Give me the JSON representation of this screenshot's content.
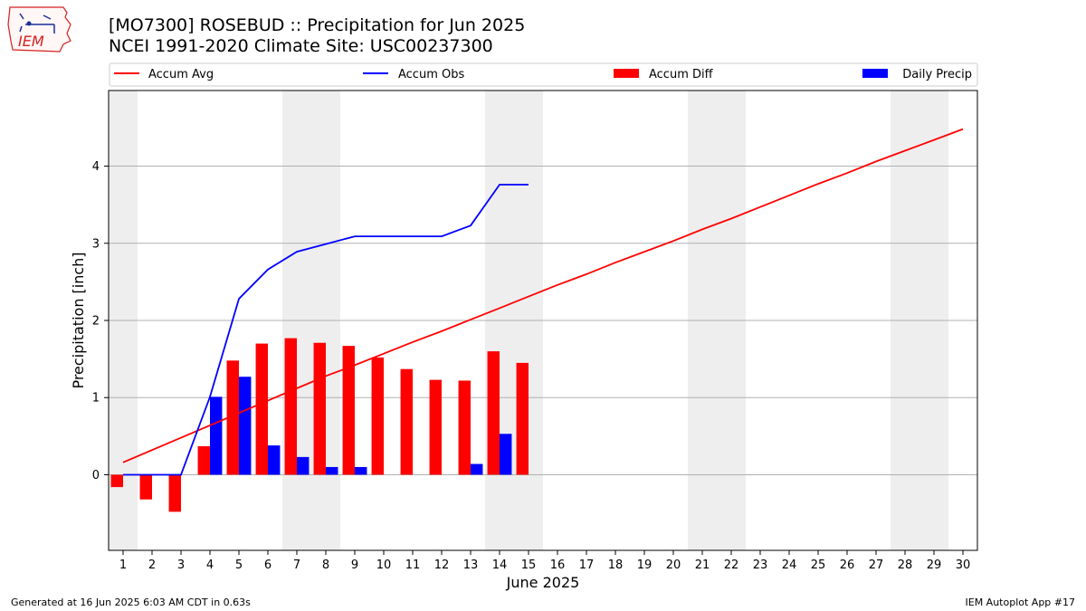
{
  "header": {
    "title": "[MO7300] ROSEBUD :: Precipitation for Jun 2025",
    "subtitle": "NCEI 1991-2020 Climate Site: USC00237300"
  },
  "logo": {
    "text": "IEM",
    "icon": "iem-iowa-logo-icon"
  },
  "footer": {
    "generated": "Generated at 16 Jun 2025 6:03 AM CDT in 0.63s",
    "app": "IEM Autoplot App #17"
  },
  "colors": {
    "accum_avg": "#ff0000",
    "accum_obs": "#0000ff",
    "accum_diff": "#ff0000",
    "daily_precip": "#0000ff",
    "weekend_band": "#eeeeee",
    "grid": "#b0b0b0"
  },
  "chart_data": {
    "type": "bar",
    "title": "",
    "xlabel": "June 2025",
    "ylabel": "Precipitation [inch]",
    "xlim": [
      0.5,
      30.5
    ],
    "ylim": [
      -0.98,
      4.98
    ],
    "x_ticks": [
      "1",
      "2",
      "3",
      "4",
      "5",
      "6",
      "7",
      "8",
      "9",
      "10",
      "11",
      "12",
      "13",
      "14",
      "15",
      "16",
      "17",
      "18",
      "19",
      "20",
      "21",
      "22",
      "23",
      "24",
      "25",
      "26",
      "27",
      "28",
      "29",
      "30"
    ],
    "y_ticks": [
      0,
      1,
      2,
      3,
      4
    ],
    "grid": "horizontal",
    "legend_placement": "top",
    "legend": [
      "Accum Avg",
      "Accum Obs",
      "Accum Diff",
      "Daily Precip"
    ],
    "weekend_days": [
      1,
      7,
      8,
      14,
      15,
      21,
      22,
      28,
      29
    ],
    "days": [
      1,
      2,
      3,
      4,
      5,
      6,
      7,
      8,
      9,
      10,
      11,
      12,
      13,
      14,
      15,
      16,
      17,
      18,
      19,
      20,
      21,
      22,
      23,
      24,
      25,
      26,
      27,
      28,
      29,
      30
    ],
    "series": [
      {
        "name": "Accum Avg",
        "kind": "line",
        "values": [
          0.16,
          0.32,
          0.48,
          0.64,
          0.8,
          0.96,
          1.12,
          1.28,
          1.42,
          1.57,
          1.72,
          1.86,
          2.01,
          2.16,
          2.31,
          2.46,
          2.6,
          2.75,
          2.89,
          3.03,
          3.18,
          3.32,
          3.47,
          3.62,
          3.77,
          3.91,
          4.06,
          4.2,
          4.34,
          4.48
        ]
      },
      {
        "name": "Accum Obs",
        "kind": "line",
        "values": [
          0.0,
          0.0,
          0.0,
          1.01,
          2.28,
          2.66,
          2.89,
          2.99,
          3.09,
          3.09,
          3.09,
          3.09,
          3.23,
          3.76,
          3.76
        ]
      },
      {
        "name": "Accum Diff",
        "kind": "bar",
        "values": [
          -0.16,
          -0.32,
          -0.48,
          0.37,
          1.48,
          1.7,
          1.77,
          1.71,
          1.67,
          1.52,
          1.37,
          1.23,
          1.22,
          1.6,
          1.45
        ]
      },
      {
        "name": "Daily Precip",
        "kind": "bar",
        "values": [
          0.0,
          0.0,
          0.0,
          1.01,
          1.27,
          0.38,
          0.23,
          0.1,
          0.1,
          0.0,
          0.0,
          0.0,
          0.14,
          0.53,
          0.0
        ]
      }
    ]
  }
}
